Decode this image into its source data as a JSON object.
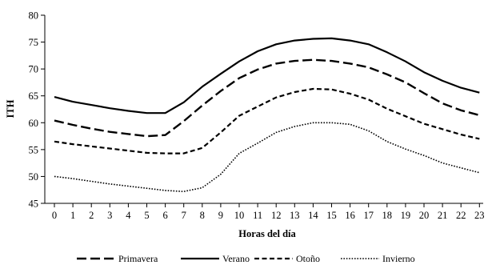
{
  "chart_data": {
    "type": "line",
    "title": "",
    "xlabel": "Horas del día",
    "ylabel": "ITH",
    "ylim": [
      45,
      80
    ],
    "yticks": [
      45,
      50,
      55,
      60,
      65,
      70,
      75,
      80
    ],
    "categories": [
      "0",
      "1",
      "2",
      "3",
      "4",
      "5",
      "6",
      "7",
      "8",
      "9",
      "10",
      "11",
      "12",
      "13",
      "14",
      "15",
      "16",
      "17",
      "18",
      "19",
      "20",
      "21",
      "22",
      "23"
    ],
    "grid": false,
    "legend_position": "bottom",
    "series": [
      {
        "name": "Primavera",
        "dash": "long-dash",
        "values": [
          60.4,
          59.6,
          58.9,
          58.3,
          57.9,
          57.5,
          57.7,
          60.3,
          63.2,
          65.9,
          68.3,
          69.9,
          71.0,
          71.5,
          71.7,
          71.5,
          71.0,
          70.3,
          69.0,
          67.5,
          65.5,
          63.6,
          62.3,
          61.4
        ]
      },
      {
        "name": "Verano",
        "dash": "solid",
        "values": [
          64.8,
          63.9,
          63.3,
          62.7,
          62.2,
          61.8,
          61.8,
          63.8,
          66.7,
          69.1,
          71.4,
          73.3,
          74.6,
          75.3,
          75.6,
          75.7,
          75.3,
          74.6,
          73.1,
          71.4,
          69.4,
          67.8,
          66.5,
          65.6
        ]
      },
      {
        "name": "Otoño",
        "dash": "short-dash",
        "values": [
          56.5,
          56.0,
          55.6,
          55.2,
          54.8,
          54.4,
          54.3,
          54.3,
          55.3,
          58.2,
          61.3,
          63.0,
          64.7,
          65.7,
          66.3,
          66.2,
          65.4,
          64.3,
          62.6,
          61.2,
          59.8,
          58.8,
          57.8,
          57.0
        ]
      },
      {
        "name": "Invierno",
        "dash": "dotted",
        "values": [
          50.0,
          49.6,
          49.1,
          48.6,
          48.2,
          47.8,
          47.4,
          47.2,
          47.9,
          50.4,
          54.3,
          56.2,
          58.2,
          59.3,
          60.0,
          60.0,
          59.7,
          58.5,
          56.5,
          55.1,
          53.9,
          52.5,
          51.6,
          50.7
        ]
      }
    ]
  }
}
